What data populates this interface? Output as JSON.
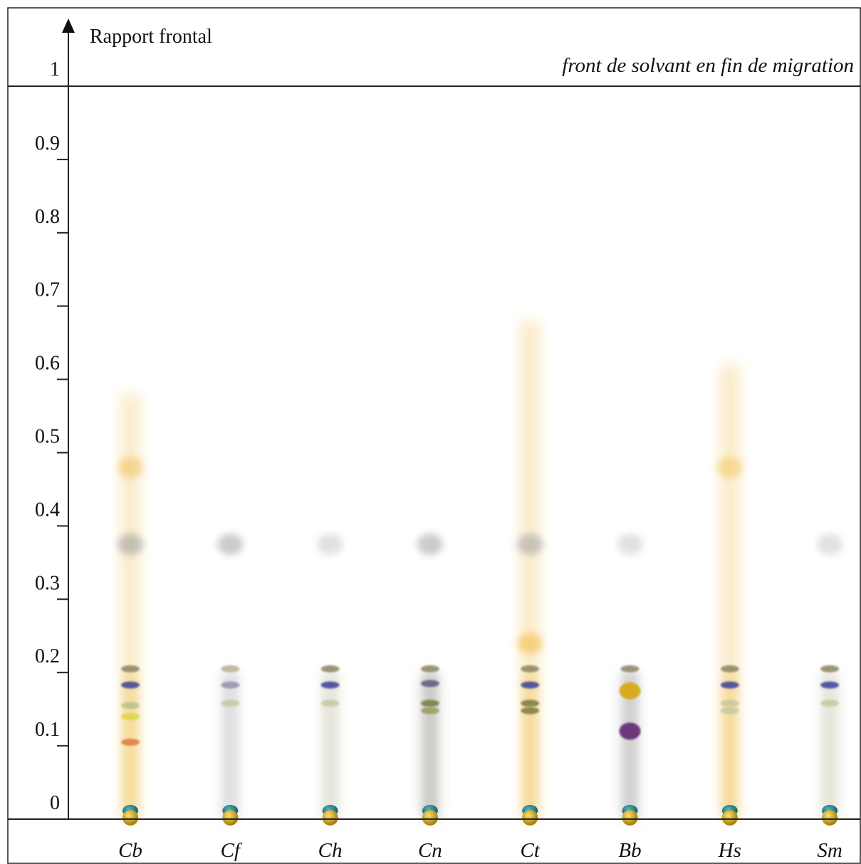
{
  "axis": {
    "label": "Rapport frontal",
    "ticks": [
      "0",
      "0.1",
      "0.2",
      "0.3",
      "0.4",
      "0.5",
      "0.6",
      "0.7",
      "0.8",
      "0.9",
      "1"
    ]
  },
  "front_label": "front de solvant en fin de migration",
  "colors": {
    "blue_spot": "#3a3f9a",
    "grey_band": "#8c8460",
    "yellow_spot": "#d9a400",
    "teal_spot": "#1f7f8f",
    "orange_spot": "#e07a40",
    "purple_spot": "#5a1f6e",
    "beige_smear": "#f2c866"
  },
  "lanes": [
    {
      "label": "Cb",
      "smear": "#f2c866",
      "smear_top": 0.58,
      "big_spots": [
        {
          "rf": 0.48,
          "color": "#f0c060"
        },
        {
          "rf": 0.375,
          "color": "#9a9a9a"
        }
      ],
      "bands": [
        {
          "rf": 0.205,
          "color": "#8c8460"
        },
        {
          "rf": 0.183,
          "color": "#3a3f9a"
        },
        {
          "rf": 0.155,
          "color": "#b8c090"
        },
        {
          "rf": 0.14,
          "color": "#d8d840"
        },
        {
          "rf": 0.105,
          "color": "#e07a40"
        }
      ]
    },
    {
      "label": "Cf",
      "smear": "#cfcfcf",
      "smear_top": 0.2,
      "big_spots": [
        {
          "rf": 0.375,
          "color": "#a0a0a0"
        }
      ],
      "bands": [
        {
          "rf": 0.205,
          "color": "#b8b090"
        },
        {
          "rf": 0.183,
          "color": "#9090b0"
        },
        {
          "rf": 0.158,
          "color": "#c8c8a0"
        }
      ]
    },
    {
      "label": "Ch",
      "smear": "#d8d8c8",
      "smear_top": 0.2,
      "big_spots": [
        {
          "rf": 0.375,
          "color": "#c8c8c8"
        }
      ],
      "bands": [
        {
          "rf": 0.205,
          "color": "#8c8460"
        },
        {
          "rf": 0.183,
          "color": "#3a3f9a"
        },
        {
          "rf": 0.158,
          "color": "#c8c8a0"
        }
      ]
    },
    {
      "label": "Cn",
      "smear": "#b0b0a8",
      "smear_top": 0.2,
      "big_spots": [
        {
          "rf": 0.375,
          "color": "#a0a0a0"
        }
      ],
      "bands": [
        {
          "rf": 0.205,
          "color": "#8c8460"
        },
        {
          "rf": 0.185,
          "color": "#5a5a80"
        },
        {
          "rf": 0.158,
          "color": "#7a7a40"
        },
        {
          "rf": 0.148,
          "color": "#9a9a60"
        }
      ]
    },
    {
      "label": "Ct",
      "smear": "#f2c866",
      "smear_top": 0.68,
      "big_spots": [
        {
          "rf": 0.375,
          "color": "#a0a0a0"
        },
        {
          "rf": 0.24,
          "color": "#f5b840"
        }
      ],
      "bands": [
        {
          "rf": 0.205,
          "color": "#8c8460"
        },
        {
          "rf": 0.183,
          "color": "#3a3f9a"
        },
        {
          "rf": 0.158,
          "color": "#7a7a40"
        },
        {
          "rf": 0.148,
          "color": "#7a7a40"
        }
      ]
    },
    {
      "label": "Bb",
      "smear": "#b8b8b8",
      "smear_top": 0.2,
      "big_spots": [
        {
          "rf": 0.375,
          "color": "#c8c8c8"
        }
      ],
      "bands": [
        {
          "rf": 0.205,
          "color": "#8c8460"
        },
        {
          "rf": 0.175,
          "color": "#d9a400"
        },
        {
          "rf": 0.12,
          "color": "#5a1f6e"
        }
      ]
    },
    {
      "label": "Hs",
      "smear": "#f2c866",
      "smear_top": 0.62,
      "big_spots": [
        {
          "rf": 0.48,
          "color": "#f5c860"
        }
      ],
      "bands": [
        {
          "rf": 0.205,
          "color": "#8c8460"
        },
        {
          "rf": 0.183,
          "color": "#3a3f9a"
        },
        {
          "rf": 0.158,
          "color": "#c8c8a0"
        },
        {
          "rf": 0.148,
          "color": "#c8c8a0"
        }
      ]
    },
    {
      "label": "Sm",
      "smear": "#d8d8c8",
      "smear_top": 0.2,
      "big_spots": [
        {
          "rf": 0.375,
          "color": "#c8c8c8"
        }
      ],
      "bands": [
        {
          "rf": 0.205,
          "color": "#8c8460"
        },
        {
          "rf": 0.183,
          "color": "#3a3f9a"
        },
        {
          "rf": 0.158,
          "color": "#c8c8a0"
        }
      ]
    }
  ]
}
